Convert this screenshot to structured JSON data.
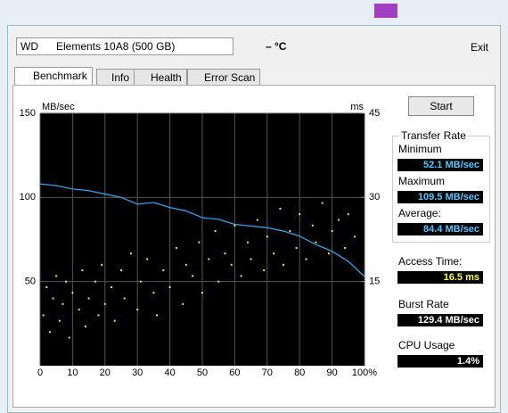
{
  "toolbar": {
    "drive": "WD      Elements 10A8 (500 GB)",
    "temperature": "– °C",
    "exit": "Exit"
  },
  "tabs": [
    "Benchmark",
    "Info",
    "Health",
    "Error Scan"
  ],
  "start": "Start",
  "stats": {
    "transfer_rate": "Transfer Rate",
    "minimum_label": "Minimum",
    "minimum": "52.1 MB/sec",
    "maximum_label": "Maximum",
    "maximum": "109.5 MB/sec",
    "average_label": "Average:",
    "average": "84.4 MB/sec",
    "access_label": "Access Time:",
    "access": "16.5 ms",
    "burst_label": "Burst Rate",
    "burst": "129.4 MB/sec",
    "cpu_label": "CPU Usage",
    "cpu": "1.4%"
  },
  "chart_data": {
    "type": "line",
    "ylabel": "MB/sec",
    "y2label": "ms",
    "xlim": [
      0,
      100
    ],
    "xticks": [
      0,
      10,
      20,
      30,
      40,
      50,
      60,
      70,
      80,
      90,
      {
        "value": 100,
        "label": "100%"
      }
    ],
    "ylim": [
      0,
      150
    ],
    "yticks": [
      50,
      100,
      150
    ],
    "y2lim": [
      0,
      45
    ],
    "y2ticks": [
      15,
      30,
      45
    ],
    "grid": true,
    "series": [
      {
        "type": "line",
        "color": "#3aa0e0",
        "x": [
          0,
          5,
          10,
          15,
          20,
          25,
          30,
          35,
          40,
          45,
          50,
          55,
          60,
          65,
          70,
          75,
          80,
          85,
          90,
          95,
          100
        ],
        "values": [
          108,
          107,
          105,
          104,
          102,
          100,
          96,
          97,
          94,
          92,
          88,
          87,
          84,
          83,
          82,
          80,
          77,
          72,
          68,
          62,
          53
        ]
      },
      {
        "type": "scatter",
        "color": "#e8e850",
        "axis": "y2",
        "x": [
          1,
          2,
          3,
          4,
          5,
          6,
          7,
          8,
          9,
          10,
          12,
          13,
          14,
          15,
          17,
          18,
          19,
          20,
          22,
          23,
          25,
          26,
          28,
          30,
          31,
          33,
          35,
          36,
          38,
          40,
          42,
          44,
          45,
          47,
          49,
          50,
          52,
          54,
          55,
          57,
          59,
          60,
          62,
          64,
          65,
          67,
          69,
          70,
          72,
          74,
          75,
          77,
          79,
          80,
          82,
          84,
          85,
          87,
          89,
          90,
          92,
          94,
          95,
          97
        ],
        "values": [
          9,
          14,
          6,
          12,
          16,
          8,
          11,
          15,
          5,
          13,
          10,
          17,
          7,
          12,
          15,
          9,
          18,
          11,
          14,
          8,
          17,
          12,
          20,
          10,
          15,
          19,
          13,
          9,
          17,
          14,
          21,
          11,
          18,
          16,
          22,
          13,
          19,
          24,
          15,
          20,
          18,
          25,
          16,
          22,
          19,
          26,
          17,
          23,
          20,
          28,
          18,
          24,
          21,
          27,
          19,
          25,
          22,
          29,
          20,
          24,
          26,
          21,
          27,
          23
        ]
      }
    ]
  }
}
